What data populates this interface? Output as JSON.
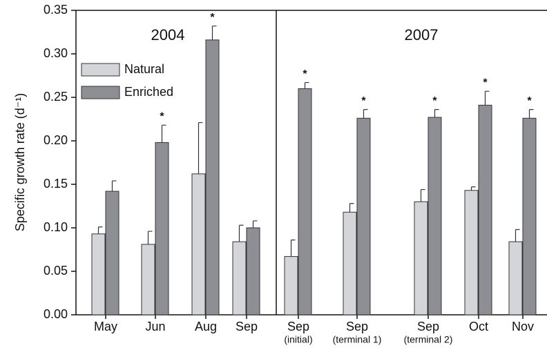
{
  "chart_data": {
    "type": "bar",
    "ylabel": "Specific growth rate (d⁻¹)",
    "panel_labels": [
      "2004",
      "2007"
    ],
    "categories": [
      "May",
      "Jun",
      "Aug",
      "Sep",
      "Sep",
      "Sep",
      "Sep",
      "Oct",
      "Nov"
    ],
    "category_sublabels": [
      null,
      null,
      null,
      null,
      "(initial)",
      "(terminal 1)",
      "(terminal 2)",
      null,
      null
    ],
    "series": [
      {
        "name": "Natural",
        "color": "#d3d5d9",
        "values": [
          0.093,
          0.081,
          0.162,
          0.084,
          0.067,
          0.118,
          0.13,
          0.143,
          0.084
        ],
        "errors": [
          0.008,
          0.015,
          0.059,
          0.019,
          0.019,
          0.01,
          0.014,
          0.004,
          0.014
        ]
      },
      {
        "name": "Enriched",
        "color": "#8e8f94",
        "values": [
          0.142,
          0.198,
          0.316,
          0.1,
          0.26,
          0.226,
          0.227,
          0.241,
          0.226
        ],
        "errors": [
          0.012,
          0.02,
          0.016,
          0.008,
          0.007,
          0.01,
          0.009,
          0.016,
          0.01
        ],
        "markers": [
          null,
          "*",
          "*",
          null,
          "*",
          "*",
          "*",
          "*",
          "*"
        ]
      }
    ],
    "ylim": [
      0,
      0.35
    ],
    "yticks": [
      {
        "value": 0,
        "label": "0.00"
      },
      0.05,
      {
        "value": 0.1,
        "label": "0.10"
      },
      0.15,
      {
        "value": 0.2,
        "label": "0.20"
      },
      0.25,
      {
        "value": 0.3,
        "label": "0.30"
      },
      0.35
    ],
    "legend": "upper left"
  }
}
